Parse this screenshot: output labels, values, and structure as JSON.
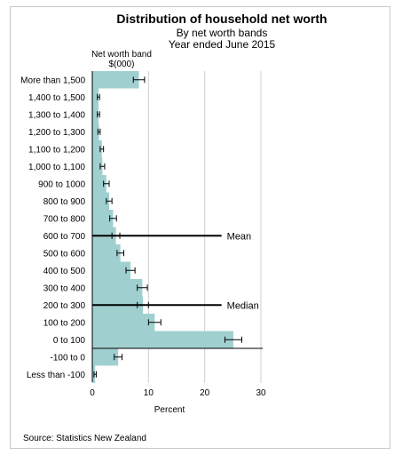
{
  "chart_data": {
    "type": "bar",
    "orientation": "horizontal",
    "title": "Distribution of household net worth",
    "subtitle_lines": [
      "By net worth bands",
      "Year ended June 2015"
    ],
    "y_axis_title_lines": [
      "Net  worth band",
      "$(000)"
    ],
    "xlabel": "Percent",
    "xlim": [
      0,
      30
    ],
    "x_ticks": [
      0,
      10,
      20,
      30
    ],
    "grid": "vertical",
    "bar_color": "#9fd0cf",
    "categories": [
      "More than 1,500",
      "1,400 to 1,500",
      "1,300 to 1,400",
      "1,200 to 1,300",
      "1,100 to 1,200",
      "1,000 to 1,100",
      "900 to 1000",
      "800 to 900",
      "700 to 800",
      "600 to 700",
      "500 to 600",
      "400 to 500",
      "300 to 400",
      "200 to 300",
      "100 to 200",
      "0 to 100",
      "-100 to 0",
      "Less than -100"
    ],
    "values": [
      8.3,
      1.1,
      1.1,
      1.2,
      1.7,
      1.8,
      2.5,
      3.0,
      3.7,
      4.2,
      5.0,
      6.8,
      8.9,
      9.0,
      11.1,
      25.1,
      4.6,
      0.5
    ],
    "error_low": [
      7.3,
      0.9,
      0.9,
      1.0,
      1.4,
      1.4,
      2.0,
      2.5,
      3.1,
      3.5,
      4.4,
      6.0,
      8.0,
      8.0,
      10.0,
      23.6,
      3.9,
      0.3
    ],
    "error_high": [
      9.3,
      1.3,
      1.3,
      1.4,
      2.0,
      2.2,
      3.0,
      3.5,
      4.3,
      4.9,
      5.6,
      7.6,
      9.8,
      10.0,
      12.2,
      26.6,
      5.3,
      0.7
    ],
    "reference_lines": [
      {
        "label": "Mean",
        "at_category_index": 9
      },
      {
        "label": "Median",
        "at_category_index": 13
      }
    ],
    "source": "Source: Statistics New Zealand"
  }
}
